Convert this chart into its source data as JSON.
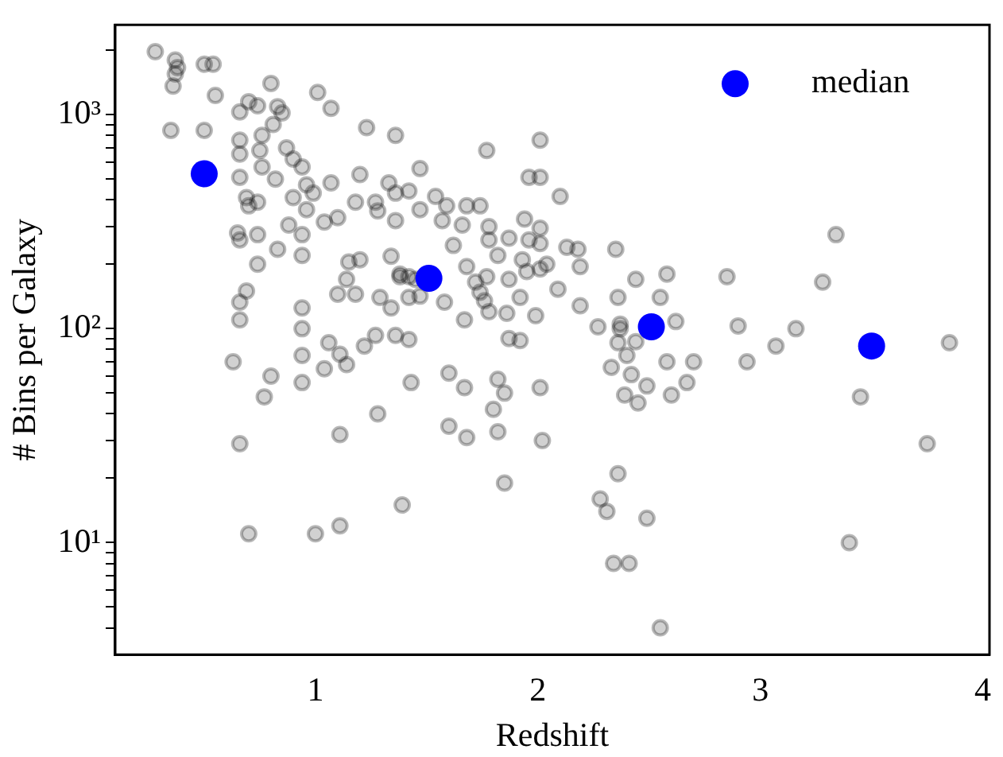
{
  "chart_data": {
    "type": "scatter",
    "xlabel": "Redshift",
    "ylabel": "# Bins per Galaxy",
    "xlim": [
      0.1,
      4.03
    ],
    "xticks": [
      1,
      2,
      3,
      4
    ],
    "ylim": [
      3.0,
      2630
    ],
    "log": "y",
    "yticks": [
      {
        "value": 4,
        "label": null
      },
      {
        "value": 5,
        "label": null
      },
      {
        "value": 6,
        "label": null
      },
      {
        "value": 7,
        "label": null
      },
      {
        "value": 8,
        "label": null
      },
      {
        "value": 9,
        "label": null
      },
      {
        "value": 10,
        "label": "10¹"
      },
      {
        "value": 20,
        "label": null
      },
      {
        "value": 30,
        "label": null
      },
      {
        "value": 40,
        "label": null
      },
      {
        "value": 50,
        "label": null
      },
      {
        "value": 60,
        "label": null
      },
      {
        "value": 70,
        "label": null
      },
      {
        "value": 80,
        "label": null
      },
      {
        "value": 90,
        "label": null
      },
      {
        "value": 100,
        "label": "10²"
      },
      {
        "value": 200,
        "label": null
      },
      {
        "value": 300,
        "label": null
      },
      {
        "value": 400,
        "label": null
      },
      {
        "value": 500,
        "label": null
      },
      {
        "value": 600,
        "label": null
      },
      {
        "value": 700,
        "label": null
      },
      {
        "value": 800,
        "label": null
      },
      {
        "value": 900,
        "label": null
      },
      {
        "value": 1000,
        "label": "10³"
      },
      {
        "value": 2000,
        "label": null
      }
    ],
    "grid": false,
    "legend": "top right",
    "marker": "circle",
    "series": [
      {
        "color": "#000000",
        "x": [
          0.28,
          0.37,
          0.38,
          0.37,
          0.5,
          0.54,
          0.36,
          0.55,
          0.35,
          0.5,
          0.8,
          0.7,
          0.74,
          0.83,
          0.85,
          0.66,
          0.81,
          0.76,
          0.66,
          0.66,
          0.75,
          0.87,
          0.9,
          0.94,
          0.76,
          0.66,
          0.82,
          0.69,
          0.74,
          0.7,
          0.9,
          0.96,
          0.99,
          0.96,
          1.01,
          1.07,
          1.07,
          1.2,
          1.18,
          1.23,
          1.36,
          1.04,
          1.1,
          0.88,
          0.94,
          0.65,
          0.66,
          0.74,
          0.83,
          0.94,
          0.74,
          1.15,
          1.2,
          1.14,
          1.1,
          1.18,
          1.34,
          1.38,
          1.29,
          1.34,
          0.69,
          0.66,
          0.66,
          0.94,
          0.94,
          1.27,
          1.28,
          1.36,
          1.33,
          1.36,
          0.63,
          0.8,
          0.77,
          0.66,
          0.94,
          0.94,
          1.06,
          1.11,
          1.14,
          1.04,
          1.22,
          1.27,
          1.36,
          1.42,
          1.43,
          1.28,
          1.11,
          1.6,
          1.67,
          1.6,
          1.68,
          1.82,
          1.85,
          1.8,
          1.82,
          2.01,
          2.02,
          1.85,
          1.39,
          0.7,
          1.0,
          1.11,
          1.87,
          1.92,
          2.01,
          1.77,
          1.47,
          1.96,
          2.01,
          2.1,
          1.42,
          1.54,
          1.47,
          1.59,
          1.68,
          1.74,
          1.57,
          1.66,
          1.78,
          1.94,
          2.01,
          1.62,
          1.78,
          1.87,
          1.96,
          2.01,
          2.13,
          2.18,
          2.35,
          1.82,
          1.93,
          1.68,
          2.04,
          2.19,
          1.95,
          2.01,
          2.44,
          2.58,
          1.77,
          1.87,
          1.72,
          1.42,
          1.42,
          1.47,
          1.58,
          1.74,
          1.76,
          1.92,
          2.09,
          2.19,
          2.36,
          2.55,
          1.67,
          1.78,
          1.86,
          1.99,
          2.27,
          2.37,
          2.62,
          3.34,
          2.85,
          3.28,
          2.9,
          3.16,
          3.07,
          2.94,
          3.85,
          2.37,
          2.36,
          2.44,
          2.4,
          2.33,
          2.58,
          2.7,
          2.42,
          2.49,
          2.39,
          2.45,
          2.6,
          2.67,
          3.45,
          3.75,
          2.36,
          2.28,
          2.31,
          2.49,
          3.4,
          2.34,
          2.41,
          2.55,
          1.38,
          1.45
        ],
        "values": [
          1970,
          1800,
          1660,
          1550,
          1720,
          1720,
          1360,
          1230,
          845,
          845,
          1400,
          1150,
          1100,
          1090,
          1020,
          1030,
          900,
          800,
          760,
          655,
          680,
          700,
          620,
          570,
          570,
          510,
          500,
          410,
          390,
          375,
          410,
          470,
          430,
          360,
          1270,
          1070,
          480,
          525,
          390,
          870,
          800,
          315,
          330,
          305,
          275,
          280,
          260,
          275,
          235,
          220,
          200,
          205,
          210,
          170,
          145,
          145,
          218,
          175,
          140,
          125,
          150,
          133,
          110,
          125,
          100,
          390,
          355,
          320,
          480,
          430,
          70,
          60,
          48,
          29,
          75,
          56,
          86,
          76,
          68,
          65,
          83,
          93,
          93,
          89,
          56,
          40,
          32,
          62,
          53,
          35,
          31,
          58,
          50,
          42,
          33,
          53,
          30,
          19,
          15,
          11,
          11,
          12,
          90,
          88,
          760,
          680,
          560,
          510,
          510,
          415,
          440,
          415,
          360,
          375,
          375,
          375,
          320,
          305,
          300,
          325,
          295,
          245,
          260,
          265,
          260,
          250,
          240,
          235,
          235,
          220,
          210,
          195,
          200,
          195,
          185,
          190,
          170,
          180,
          175,
          170,
          165,
          175,
          140,
          142,
          133,
          148,
          135,
          140,
          153,
          128,
          140,
          140,
          110,
          120,
          118,
          115,
          102,
          100,
          108,
          275,
          175,
          165,
          103,
          100,
          83,
          70,
          86,
          105,
          86,
          87,
          75,
          66,
          70,
          70,
          61,
          54,
          49,
          45,
          49,
          56,
          48,
          29,
          21,
          16,
          14,
          13,
          10,
          8,
          8,
          4,
          180,
          170
        ]
      },
      {
        "name": "median",
        "color": "#0000ff",
        "x": [
          0.5,
          1.51,
          2.51,
          3.5
        ],
        "values": [
          530,
          172,
          102,
          83
        ]
      }
    ]
  }
}
